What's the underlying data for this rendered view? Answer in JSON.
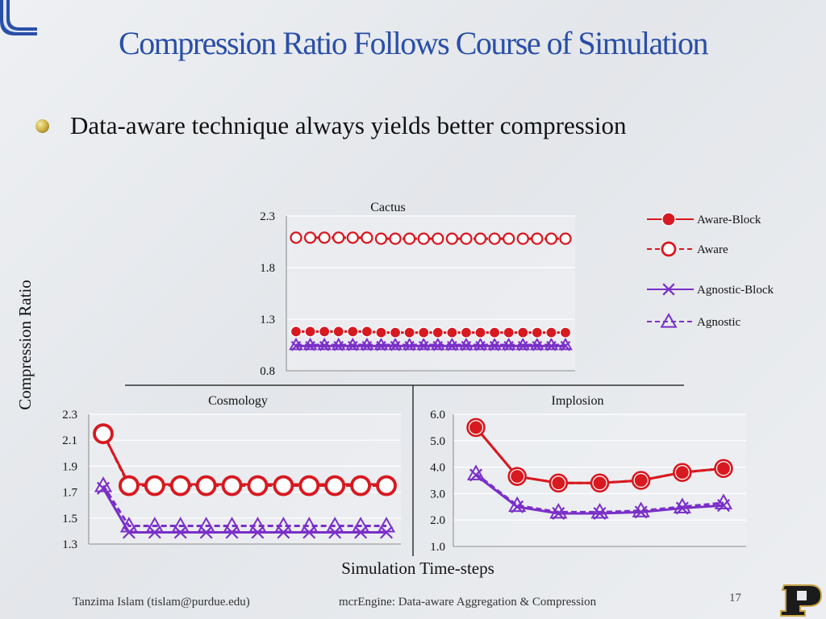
{
  "slide": {
    "title": "Compression Ratio Follows Course of Simulation",
    "bullet": "Data-aware technique always yields better compression",
    "footer_left": "Tanzima Islam (tislam@purdue.edu)",
    "footer_center": "mcrEngine: Data-aware Aggregation & Compression",
    "page_number": "17",
    "y_axis_label": "Compression Ratio",
    "x_axis_label": "Simulation Time-steps"
  },
  "colors": {
    "title": "#2a4fa8",
    "aware": "#d71920",
    "agnostic": "#7a2fc8",
    "axis": "#888888",
    "grid": "#ffffff",
    "logo": "#2a4fa8"
  },
  "legend": [
    {
      "name": "Aware-Block",
      "color": "#d71920",
      "dash": false,
      "marker": "filled-circle"
    },
    {
      "name": "Aware",
      "color": "#d71920",
      "dash": true,
      "marker": "open-circle"
    },
    {
      "name": "Agnostic-Block",
      "color": "#7a2fc8",
      "dash": false,
      "marker": "x"
    },
    {
      "name": "Agnostic",
      "color": "#7a2fc8",
      "dash": true,
      "marker": "open-triangle"
    }
  ],
  "chart_data": [
    {
      "type": "line",
      "title": "Cactus",
      "xlabel": "Simulation Time-steps",
      "ylabel": "Compression Ratio",
      "ylim": [
        0.8,
        2.3
      ],
      "yticks": [
        "0.8",
        "1.3",
        "1.8",
        "2.3"
      ],
      "x": [
        1,
        2,
        3,
        4,
        5,
        6,
        7,
        8,
        9,
        10,
        11,
        12,
        13,
        14,
        15,
        16,
        17,
        18,
        19,
        20
      ],
      "series": [
        {
          "name": "Aware",
          "values": [
            2.09,
            2.09,
            2.09,
            2.09,
            2.09,
            2.09,
            2.08,
            2.08,
            2.08,
            2.08,
            2.08,
            2.08,
            2.08,
            2.08,
            2.08,
            2.08,
            2.08,
            2.08,
            2.08,
            2.08
          ]
        },
        {
          "name": "Aware-Block",
          "values": [
            1.18,
            1.18,
            1.18,
            1.18,
            1.18,
            1.18,
            1.17,
            1.17,
            1.17,
            1.17,
            1.17,
            1.17,
            1.17,
            1.17,
            1.17,
            1.17,
            1.17,
            1.17,
            1.17,
            1.17
          ]
        },
        {
          "name": "Agnostic",
          "values": [
            1.05,
            1.05,
            1.05,
            1.05,
            1.05,
            1.05,
            1.05,
            1.05,
            1.05,
            1.05,
            1.05,
            1.05,
            1.05,
            1.05,
            1.05,
            1.05,
            1.05,
            1.05,
            1.05,
            1.05
          ]
        },
        {
          "name": "Agnostic-Block",
          "values": [
            1.04,
            1.04,
            1.04,
            1.04,
            1.04,
            1.04,
            1.04,
            1.04,
            1.04,
            1.04,
            1.04,
            1.04,
            1.04,
            1.04,
            1.04,
            1.04,
            1.04,
            1.04,
            1.04,
            1.04
          ]
        }
      ]
    },
    {
      "type": "line",
      "title": "Cosmology",
      "xlabel": "Simulation Time-steps",
      "ylabel": "Compression Ratio",
      "ylim": [
        1.3,
        2.3
      ],
      "yticks": [
        "1.3",
        "1.5",
        "1.7",
        "1.9",
        "2.1",
        "2.3"
      ],
      "x": [
        1,
        2,
        3,
        4,
        5,
        6,
        7,
        8,
        9,
        10,
        11,
        12
      ],
      "series": [
        {
          "name": "Aware-Block",
          "values": [
            2.15,
            1.76,
            1.76,
            1.76,
            1.76,
            1.76,
            1.76,
            1.76,
            1.76,
            1.76,
            1.76,
            1.76
          ]
        },
        {
          "name": "Aware",
          "values": [
            2.15,
            1.75,
            1.75,
            1.75,
            1.75,
            1.75,
            1.75,
            1.75,
            1.75,
            1.75,
            1.75,
            1.75
          ]
        },
        {
          "name": "Agnostic",
          "values": [
            1.75,
            1.44,
            1.44,
            1.44,
            1.44,
            1.44,
            1.44,
            1.44,
            1.44,
            1.44,
            1.44,
            1.44
          ]
        },
        {
          "name": "Agnostic-Block",
          "values": [
            1.73,
            1.39,
            1.39,
            1.39,
            1.39,
            1.39,
            1.39,
            1.39,
            1.39,
            1.39,
            1.39,
            1.39
          ]
        }
      ]
    },
    {
      "type": "line",
      "title": "Implosion",
      "xlabel": "Simulation Time-steps",
      "ylabel": "Compression Ratio",
      "ylim": [
        1.0,
        6.0
      ],
      "yticks": [
        "1.0",
        "2.0",
        "3.0",
        "4.0",
        "5.0",
        "6.0"
      ],
      "x": [
        1,
        2,
        3,
        4,
        5,
        6,
        7
      ],
      "series": [
        {
          "name": "Aware-Block",
          "values": [
            5.5,
            3.65,
            3.4,
            3.4,
            3.5,
            3.8,
            3.95
          ]
        },
        {
          "name": "Aware",
          "values": [
            5.5,
            3.65,
            3.4,
            3.4,
            3.5,
            3.8,
            3.95
          ]
        },
        {
          "name": "Agnostic",
          "values": [
            3.75,
            2.55,
            2.3,
            2.3,
            2.35,
            2.5,
            2.65
          ]
        },
        {
          "name": "Agnostic-Block",
          "values": [
            3.7,
            2.5,
            2.25,
            2.25,
            2.3,
            2.45,
            2.55
          ]
        }
      ]
    }
  ]
}
